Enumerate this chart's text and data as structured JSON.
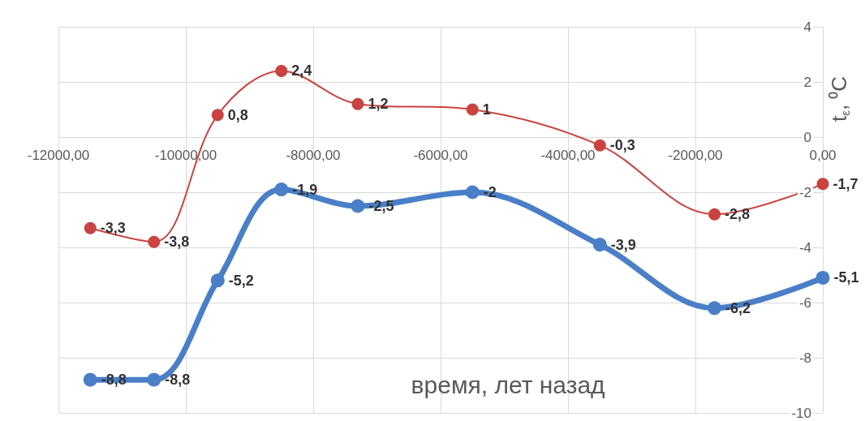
{
  "chart_data": {
    "type": "line",
    "xlabel": "время, лет назад",
    "ylabel": "t$_{ε}$, ⁰C",
    "x": [
      -11500,
      -10500,
      -9500,
      -8500,
      -7300,
      -5500,
      -3500,
      -1700,
      0
    ],
    "series": [
      {
        "color": "#c94340",
        "values": [
          -3.3,
          -3.8,
          0.8,
          2.4,
          1.2,
          1,
          -0.3,
          -2.8,
          -1.7
        ],
        "value_labels": [
          "-3,3",
          "-3,8",
          "0,8",
          "2,4",
          "1,2",
          "1",
          "-0,3",
          "-2,8",
          "-1,7"
        ]
      },
      {
        "color": "#4a7fc8",
        "values": [
          -8.8,
          -8.8,
          -5.2,
          -1.9,
          -2.5,
          -2,
          -3.9,
          -6.2,
          -5.1
        ],
        "value_labels": [
          "-8,8",
          "-8,8",
          "-5,2",
          "-1,9",
          "-2,5",
          "-2",
          "-3,9",
          "-6,2",
          "-5,1"
        ]
      }
    ],
    "xlim": [
      -12000,
      0
    ],
    "xticks": [
      {
        "value": -12000,
        "label": "-12000,00"
      },
      {
        "value": -10000,
        "label": "-10000,00"
      },
      {
        "value": -8000,
        "label": "-8000,00"
      },
      {
        "value": -6000,
        "label": "-6000,00"
      },
      {
        "value": -4000,
        "label": "-4000,00"
      },
      {
        "value": -2000,
        "label": "-2000,00"
      },
      {
        "value": 0,
        "label": "0,00"
      }
    ],
    "ylim": [
      -10,
      4
    ],
    "yticks": [
      -10,
      -8,
      -6,
      -4,
      -2,
      0,
      2,
      4
    ],
    "grid": true,
    "marker": "circle"
  }
}
